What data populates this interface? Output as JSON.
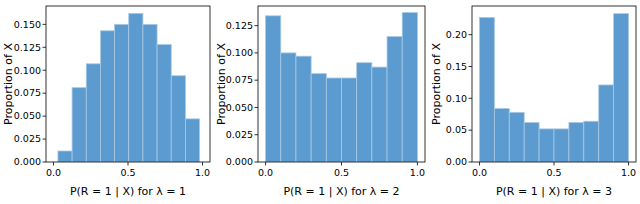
{
  "chart_data": [
    {
      "type": "histogram",
      "xlabel": "P(R = 1 | X) for λ = 1",
      "ylabel": "Proportion of X",
      "bins": [
        0.03,
        0.125,
        0.22,
        0.315,
        0.41,
        0.505,
        0.6,
        0.695,
        0.79,
        0.885,
        0.98
      ],
      "values": [
        0.012,
        0.081,
        0.107,
        0.143,
        0.15,
        0.162,
        0.15,
        0.128,
        0.094,
        0.047
      ],
      "color": "#5b9bcf",
      "xlim": [
        -0.05,
        1.05
      ],
      "ylim": [
        0,
        0.17
      ],
      "xticks": [
        {
          "value": 0,
          "label": "0.0"
        },
        {
          "value": 0.5,
          "label": "0.5"
        },
        {
          "value": 1,
          "label": "1.0"
        }
      ],
      "yticks": [
        {
          "value": 0,
          "label": "0.000"
        },
        {
          "value": 0.025,
          "label": "0.025"
        },
        {
          "value": 0.05,
          "label": "0.050"
        },
        {
          "value": 0.075,
          "label": "0.075"
        },
        {
          "value": 0.1,
          "label": "0.100"
        },
        {
          "value": 0.125,
          "label": "0.125"
        },
        {
          "value": 0.15,
          "label": "0.150"
        }
      ]
    },
    {
      "type": "histogram",
      "xlabel": "P(R = 1 | X) for λ = 2",
      "ylabel": "Proportion of X",
      "bins": [
        0,
        0.1,
        0.2,
        0.3,
        0.4,
        0.5,
        0.6,
        0.7,
        0.8,
        0.9,
        1
      ],
      "values": [
        0.134,
        0.1,
        0.097,
        0.081,
        0.077,
        0.077,
        0.091,
        0.087,
        0.115,
        0.137
      ],
      "color": "#5b9bcf",
      "xlim": [
        -0.05,
        1.05
      ],
      "ylim": [
        0,
        0.143
      ],
      "xticks": [
        {
          "value": 0,
          "label": "0.0"
        },
        {
          "value": 0.5,
          "label": "0.5"
        },
        {
          "value": 1,
          "label": "1.0"
        }
      ],
      "yticks": [
        {
          "value": 0,
          "label": "0.000"
        },
        {
          "value": 0.025,
          "label": "0.025"
        },
        {
          "value": 0.05,
          "label": "0.050"
        },
        {
          "value": 0.075,
          "label": "0.075"
        },
        {
          "value": 0.1,
          "label": "0.100"
        },
        {
          "value": 0.125,
          "label": "0.125"
        }
      ]
    },
    {
      "type": "histogram",
      "xlabel": "P(R = 1 | X) for λ = 3",
      "ylabel": "Proportion of X",
      "bins": [
        0,
        0.1,
        0.2,
        0.3,
        0.4,
        0.5,
        0.6,
        0.7,
        0.8,
        0.9,
        1
      ],
      "values": [
        0.227,
        0.084,
        0.078,
        0.062,
        0.052,
        0.052,
        0.062,
        0.064,
        0.121,
        0.233
      ],
      "color": "#5b9bcf",
      "xlim": [
        -0.05,
        1.05
      ],
      "ylim": [
        0,
        0.245
      ],
      "xticks": [
        {
          "value": 0,
          "label": "0.0"
        },
        {
          "value": 0.5,
          "label": "0.5"
        },
        {
          "value": 1,
          "label": "1.0"
        }
      ],
      "yticks": [
        {
          "value": 0,
          "label": "0.00"
        },
        {
          "value": 0.05,
          "label": "0.05"
        },
        {
          "value": 0.1,
          "label": "0.10"
        },
        {
          "value": 0.15,
          "label": "0.15"
        },
        {
          "value": 0.2,
          "label": "0.20"
        }
      ]
    }
  ]
}
